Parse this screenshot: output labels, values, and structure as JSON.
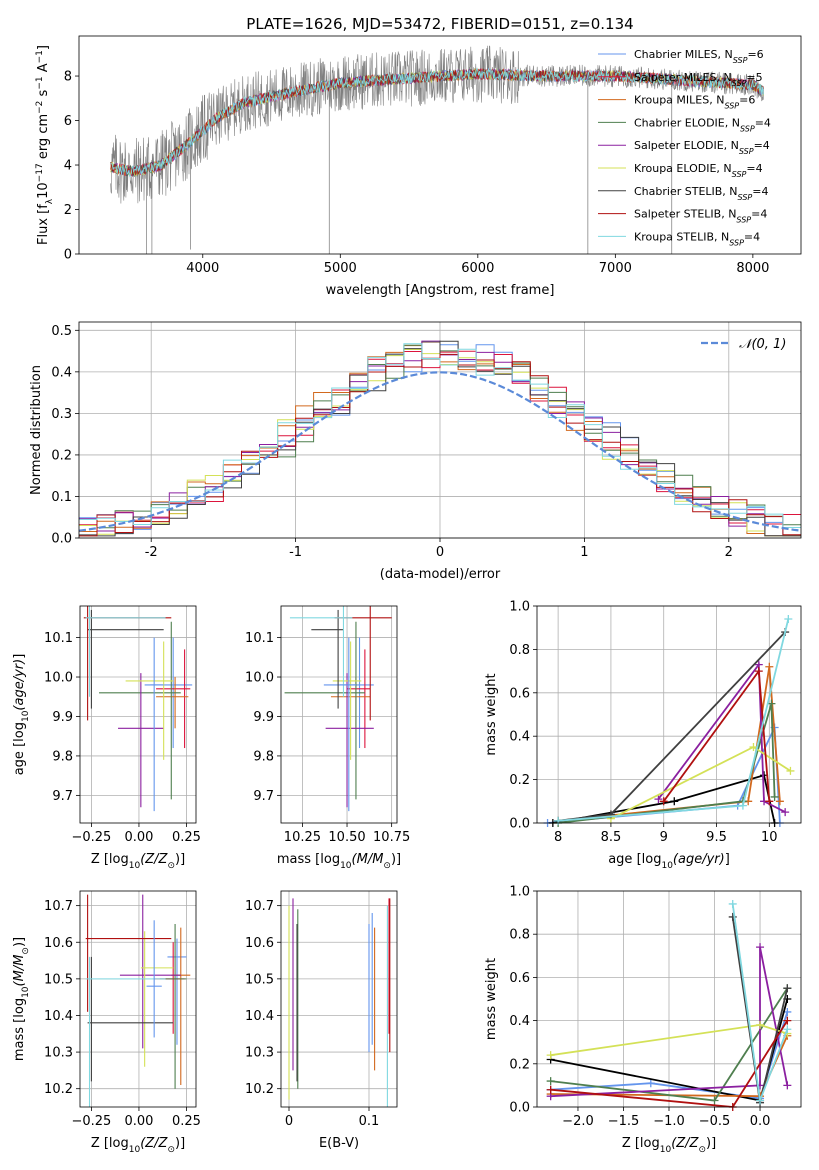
{
  "colors": [
    "#6495ed",
    "#dc143c",
    "#ff8c00",
    "#2e8b57",
    "#8b008b",
    "#ccd84a",
    "#333333",
    "#b22222",
    "#87ceeb",
    "#ff69b4"
  ],
  "models": [
    {
      "label": "Chabrier MILES, N",
      "sub": "SSP",
      "tail": "=6",
      "color": "#6495ed"
    },
    {
      "label": "Salpeter MILES, N",
      "sub": "SSP",
      "tail": "=5",
      "color": "#dc143c"
    },
    {
      "label": "Kroupa MILES, N",
      "sub": "SSP",
      "tail": "=6",
      "color": "#d2691e"
    },
    {
      "label": "Chabrier ELODIE, N",
      "sub": "SSP",
      "tail": "=4",
      "color": "#4f7f4f"
    },
    {
      "label": "Salpeter ELODIE, N",
      "sub": "SSP",
      "tail": "=4",
      "color": "#8b20a0"
    },
    {
      "label": "Kroupa ELODIE, N",
      "sub": "SSP",
      "tail": "=4",
      "color": "#d4e157"
    },
    {
      "label": "Chabrier STELIB, N",
      "sub": "SSP",
      "tail": "=4",
      "color": "#404040"
    },
    {
      "label": "Salpeter STELIB, N",
      "sub": "SSP",
      "tail": "=4",
      "color": "#b01010"
    },
    {
      "label": "Kroupa STELIB, N",
      "sub": "SSP",
      "tail": "=4",
      "color": "#80d8e0"
    }
  ],
  "chart_data": [
    {
      "type": "line",
      "title": "PLATE=1626, MJD=53472, FIBERID=0151, z=0.134",
      "xlabel": "wavelength [Angstrom, rest frame]",
      "ylabel": "Flux [f",
      "xlim": [
        3100,
        8350
      ],
      "ylim": [
        0,
        9.8
      ],
      "xticks": [
        4000,
        5000,
        6000,
        7000,
        8000
      ],
      "yticks": [
        0,
        2,
        4,
        6,
        8
      ],
      "spectrum_trend": {
        "x": [
          3330,
          3500,
          3700,
          3900,
          4100,
          4300,
          4600,
          5000,
          5500,
          6000,
          6500,
          7000,
          7500,
          8000,
          8080
        ],
        "y": [
          3.9,
          3.7,
          4.0,
          5.0,
          6.1,
          6.8,
          7.2,
          7.7,
          7.9,
          8.1,
          8.0,
          8.0,
          7.8,
          7.6,
          7.3
        ]
      }
    },
    {
      "type": "line",
      "xlabel": "(data-model)/error",
      "ylabel": "Normed distribution",
      "xlim": [
        -2.5,
        2.5
      ],
      "ylim": [
        0,
        0.52
      ],
      "xticks": [
        -2,
        -1,
        0,
        1,
        2
      ],
      "yticks": [
        0.0,
        0.1,
        0.2,
        0.3,
        0.4,
        0.5
      ],
      "legend": "N(0,1)",
      "gaussian": {
        "mean": 0,
        "sigma": 1
      }
    },
    {
      "type": "scatter",
      "xlabel": "Z [log",
      "ylabel": "age  [log",
      "xlim": [
        -0.31,
        0.3
      ],
      "ylim": [
        9.63,
        10.18
      ],
      "xticks": [
        -0.25,
        0.0,
        0.25
      ],
      "xticklabels": [
        "−0.25",
        "0.00",
        "0.25"
      ],
      "yticks": [
        9.7,
        9.8,
        9.9,
        10.0,
        10.1
      ]
    },
    {
      "type": "scatter",
      "xlabel": "mass [log",
      "xlim": [
        10.13,
        10.78
      ],
      "ylim": [
        9.63,
        10.18
      ],
      "xticks": [
        10.25,
        10.5,
        10.75
      ],
      "xticklabels": [
        "10.25",
        "10.50",
        "10.75"
      ],
      "yticks": [
        9.7,
        9.8,
        9.9,
        10.0,
        10.1
      ]
    },
    {
      "type": "line",
      "xlabel": "age  [log",
      "ylabel": "mass weight",
      "xlim": [
        7.8,
        10.3
      ],
      "ylim": [
        0,
        1
      ],
      "xticks": [
        8.0,
        8.5,
        9.0,
        9.5,
        10.0
      ],
      "yticks": [
        0.0,
        0.2,
        0.4,
        0.6,
        0.8,
        1.0
      ]
    },
    {
      "type": "scatter",
      "xlabel": "Z [log",
      "ylabel": "mass [log",
      "xlim": [
        -0.31,
        0.3
      ],
      "ylim": [
        10.15,
        10.74
      ],
      "xticks": [
        -0.25,
        0.0,
        0.25
      ],
      "xticklabels": [
        "−0.25",
        "0.00",
        "0.25"
      ],
      "yticks": [
        10.2,
        10.3,
        10.4,
        10.5,
        10.6,
        10.7
      ]
    },
    {
      "type": "scatter",
      "xlabel": "E(B-V)",
      "xlim": [
        -0.01,
        0.135
      ],
      "ylim": [
        10.15,
        10.74
      ],
      "xticks": [
        0.0,
        0.1
      ],
      "yticks": [
        10.2,
        10.3,
        10.4,
        10.5,
        10.6,
        10.7
      ]
    },
    {
      "type": "line",
      "xlabel": "Z [log",
      "ylabel": "mass weight",
      "xlim": [
        -2.45,
        0.45
      ],
      "ylim": [
        0,
        1
      ],
      "xticks": [
        -2.0,
        -1.5,
        -1.0,
        -0.5,
        0.0
      ],
      "xticklabels": [
        "−2.0",
        "−1.5",
        "−1.0",
        "−0.5",
        "0.0"
      ],
      "yticks": [
        0.0,
        0.2,
        0.4,
        0.6,
        0.8,
        1.0
      ]
    }
  ],
  "labels": {
    "flux_unit": "10",
    "flux_exp": "−17",
    "flux_rest": " erg cm",
    "zsun": "(Z/Z",
    "msun": "(M/M",
    "ageyr": "(age/yr)",
    "sub10": "10",
    "odot": "⊙",
    "gauss_label": "𝒩(0, 1)"
  }
}
